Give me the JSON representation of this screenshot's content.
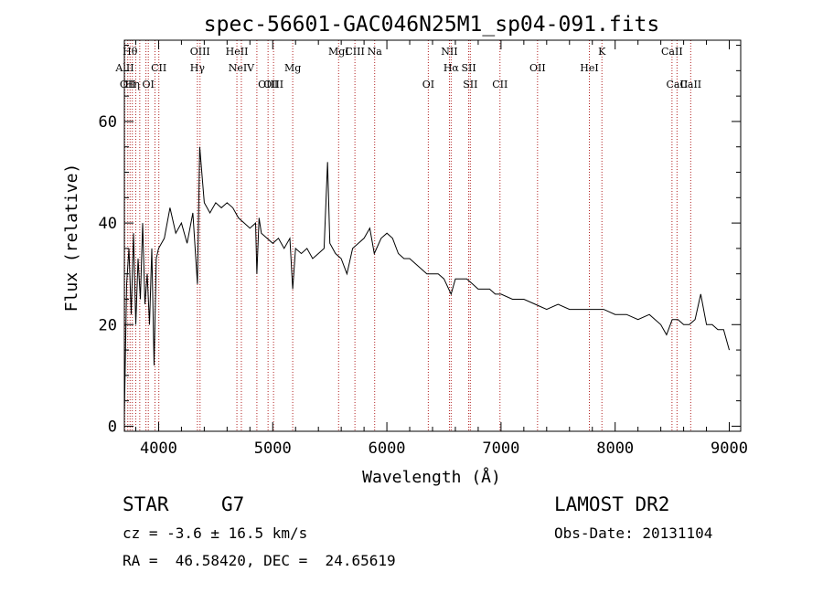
{
  "chart_data": {
    "type": "line",
    "title": "spec-56601-GAC046N25M1_sp04-091.fits",
    "xlabel": "Wavelength (Å)",
    "ylabel": "Flux (relative)",
    "xlim": [
      3700,
      9100
    ],
    "ylim": [
      -1,
      76
    ],
    "x_ticks": [
      4000,
      5000,
      6000,
      7000,
      8000,
      9000
    ],
    "x_tick_labels": [
      "4000",
      "5000",
      "6000",
      "7000",
      "8000",
      "9000"
    ],
    "y_ticks": [
      0,
      20,
      40,
      60
    ],
    "y_tick_labels": [
      "0",
      "20",
      "40",
      "60"
    ],
    "grid": false,
    "series": [
      {
        "name": "spectrum",
        "x": [
          3700,
          3720,
          3740,
          3760,
          3780,
          3800,
          3820,
          3840,
          3860,
          3880,
          3900,
          3920,
          3940,
          3960,
          3980,
          4000,
          4050,
          4100,
          4150,
          4200,
          4250,
          4300,
          4340,
          4360,
          4400,
          4450,
          4500,
          4550,
          4600,
          4650,
          4700,
          4750,
          4800,
          4850,
          4861,
          4880,
          4900,
          4950,
          5000,
          5050,
          5100,
          5150,
          5175,
          5200,
          5250,
          5300,
          5350,
          5400,
          5450,
          5480,
          5500,
          5550,
          5600,
          5650,
          5700,
          5750,
          5800,
          5850,
          5890,
          5950,
          6000,
          6050,
          6100,
          6150,
          6200,
          6250,
          6300,
          6350,
          6400,
          6450,
          6500,
          6563,
          6600,
          6650,
          6700,
          6750,
          6800,
          6850,
          6900,
          6950,
          7000,
          7100,
          7200,
          7300,
          7400,
          7500,
          7600,
          7700,
          7800,
          7900,
          8000,
          8100,
          8200,
          8300,
          8400,
          8450,
          8500,
          8550,
          8600,
          8650,
          8700,
          8750,
          8800,
          8850,
          8900,
          8950,
          9000
        ],
        "y": [
          2,
          28,
          35,
          22,
          38,
          20,
          33,
          25,
          40,
          24,
          30,
          20,
          35,
          12,
          33,
          35,
          37,
          43,
          38,
          40,
          36,
          42,
          28,
          55,
          44,
          42,
          44,
          43,
          44,
          43,
          41,
          40,
          39,
          40,
          30,
          41,
          38,
          37,
          36,
          37,
          35,
          37,
          27,
          35,
          34,
          35,
          33,
          34,
          35,
          52,
          36,
          34,
          33,
          30,
          35,
          36,
          37,
          39,
          34,
          37,
          38,
          37,
          34,
          33,
          33,
          32,
          31,
          30,
          30,
          30,
          29,
          26,
          29,
          29,
          29,
          28,
          27,
          27,
          27,
          26,
          26,
          25,
          25,
          24,
          23,
          24,
          23,
          23,
          23,
          23,
          22,
          22,
          21,
          22,
          20,
          18,
          21,
          21,
          20,
          20,
          21,
          26,
          20,
          20,
          19,
          19,
          15
        ]
      }
    ],
    "line_markers": [
      {
        "wavelength": 3704,
        "label": "AlII",
        "row": 2
      },
      {
        "wavelength": 3730,
        "label": "OII",
        "row": 3
      },
      {
        "wavelength": 3750,
        "label": "Hθ",
        "row": 1
      },
      {
        "wavelength": 3770,
        "label": "Hη",
        "row": 3
      },
      {
        "wavelength": 3800,
        "label": "",
        "row": 0
      },
      {
        "wavelength": 3835,
        "label": "",
        "row": 0
      },
      {
        "wavelength": 3889,
        "label": "",
        "row": 0
      },
      {
        "wavelength": 3910,
        "label": "OI",
        "row": 3
      },
      {
        "wavelength": 3968,
        "label": "",
        "row": 0
      },
      {
        "wavelength": 4002,
        "label": "CII",
        "row": 2
      },
      {
        "wavelength": 4340,
        "label": "Hγ",
        "row": 2
      },
      {
        "wavelength": 4363,
        "label": "OIII",
        "row": 1
      },
      {
        "wavelength": 4686,
        "label": "HeII",
        "row": 1
      },
      {
        "wavelength": 4725,
        "label": "NeIV",
        "row": 2
      },
      {
        "wavelength": 4861,
        "label": "",
        "row": 0
      },
      {
        "wavelength": 4959,
        "label": "OIII",
        "row": 3
      },
      {
        "wavelength": 5007,
        "label": "OIII",
        "row": 3
      },
      {
        "wavelength": 5175,
        "label": "Mg",
        "row": 2
      },
      {
        "wavelength": 5577,
        "label": "MgI",
        "row": 1
      },
      {
        "wavelength": 5720,
        "label": "CIII",
        "row": 1
      },
      {
        "wavelength": 5893,
        "label": "Na",
        "row": 1
      },
      {
        "wavelength": 6363,
        "label": "OI",
        "row": 3
      },
      {
        "wavelength": 6548,
        "label": "NII",
        "row": 1
      },
      {
        "wavelength": 6563,
        "label": "Hα",
        "row": 2
      },
      {
        "wavelength": 6717,
        "label": "SII",
        "row": 2
      },
      {
        "wavelength": 6731,
        "label": "SII",
        "row": 3
      },
      {
        "wavelength": 6991,
        "label": "CII",
        "row": 3
      },
      {
        "wavelength": 7320,
        "label": "OII",
        "row": 2
      },
      {
        "wavelength": 7774,
        "label": "HeI",
        "row": 2
      },
      {
        "wavelength": 7884,
        "label": "K",
        "row": 1
      },
      {
        "wavelength": 8498,
        "label": "CaII",
        "row": 1
      },
      {
        "wavelength": 8542,
        "label": "CaII",
        "row": 3
      },
      {
        "wavelength": 8662,
        "label": "CaII",
        "row": 3
      }
    ]
  },
  "info": {
    "class": "STAR",
    "subclass": "G7",
    "cz": "cz = -3.6 ± 16.5 km/s",
    "radec": "RA =  46.58420, DEC =  24.65619",
    "survey": "LAMOST DR2",
    "obsdate": "Obs-Date: 20131104"
  },
  "colors": {
    "spectrum": "#000000",
    "marker": "#b22222",
    "axis": "#000000"
  }
}
